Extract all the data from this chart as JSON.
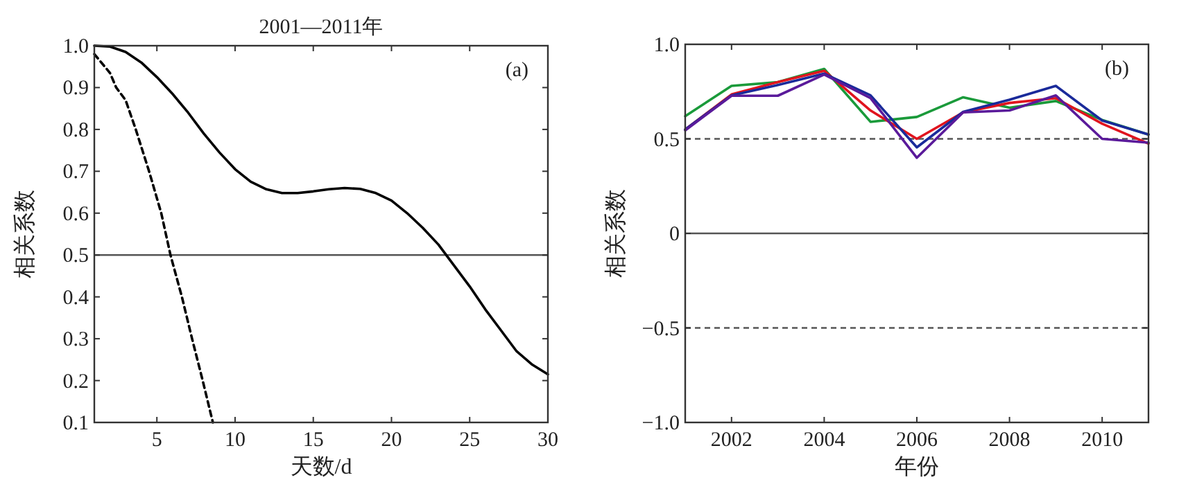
{
  "chart_data": [
    {
      "type": "line",
      "title": "2001—2011年",
      "xlabel": "天数/d",
      "ylabel": "相关系数",
      "annotations": [
        "(a)"
      ],
      "x": [
        1,
        2,
        3,
        4,
        5,
        6,
        7,
        8,
        9,
        10,
        11,
        12,
        13,
        14,
        15,
        16,
        17,
        18,
        19,
        20,
        21,
        22,
        23,
        24,
        25,
        26,
        27,
        28,
        29,
        30
      ],
      "xlim": [
        1,
        30
      ],
      "ylim": [
        0.1,
        1.0
      ],
      "xticks": [
        5,
        10,
        15,
        20,
        25,
        30
      ],
      "yticks": [
        {
          "value": 0.1,
          "label": "0.1"
        },
        {
          "value": 0.2,
          "label": "0.2"
        },
        {
          "value": 0.3,
          "label": "0.3"
        },
        {
          "value": 0.4,
          "label": "0.4"
        },
        {
          "value": 0.5,
          "label": "0.5"
        },
        {
          "value": 0.6,
          "label": "0.6"
        },
        {
          "value": 0.7,
          "label": "0.7"
        },
        {
          "value": 0.8,
          "label": "0.8"
        },
        {
          "value": 0.9,
          "label": "0.9"
        },
        {
          "value": 1.0,
          "label": "1.0"
        }
      ],
      "ref_lines": [
        {
          "axis": "y",
          "value": 0.5,
          "color": "#555555",
          "line_style": "solid"
        }
      ],
      "series": [
        {
          "color": "#000000",
          "line_style": "solid",
          "values": [
            1.0,
            0.998,
            0.985,
            0.96,
            0.925,
            0.885,
            0.84,
            0.79,
            0.745,
            0.705,
            0.675,
            0.657,
            0.648,
            0.648,
            0.652,
            0.657,
            0.66,
            0.658,
            0.648,
            0.63,
            0.6,
            0.565,
            0.525,
            0.475,
            0.425,
            0.37,
            0.32,
            0.27,
            0.238,
            0.215
          ]
        },
        {
          "color": "#000000",
          "line_style": "dashed",
          "x": [
            1,
            2,
            2.4,
            3,
            3.65,
            4.5,
            5.28,
            5.87,
            6.6,
            7.25,
            7.93,
            8.58
          ],
          "values": [
            0.98,
            0.935,
            0.9,
            0.87,
            0.8,
            0.7,
            0.6,
            0.5,
            0.4,
            0.3,
            0.2,
            0.1
          ]
        }
      ]
    },
    {
      "type": "line",
      "xlabel": "年份",
      "ylabel": "相关系数",
      "annotations": [
        "(b)"
      ],
      "x": [
        2001,
        2002,
        2003,
        2004,
        2005,
        2006,
        2007,
        2008,
        2009,
        2010,
        2011
      ],
      "xlim": [
        2001,
        2011
      ],
      "ylim": [
        -1.0,
        1.0
      ],
      "xticks": [
        2002,
        2004,
        2006,
        2008,
        2010
      ],
      "yticks": [
        {
          "value": -1.0,
          "label": "−1.0"
        },
        {
          "value": -0.5,
          "label": "−0.5"
        },
        0,
        {
          "value": 0.5,
          "label": "0.5"
        },
        {
          "value": 1.0,
          "label": "1.0"
        }
      ],
      "ref_lines": [
        {
          "axis": "y",
          "value": 0.5,
          "color": "#555555",
          "line_style": "dashed"
        },
        {
          "axis": "y",
          "value": 0,
          "color": "#555555",
          "line_style": "solid"
        },
        {
          "axis": "y",
          "value": -0.5,
          "color": "#555555",
          "line_style": "dashed"
        }
      ],
      "series": [
        {
          "color": "#1a9a3a",
          "line_style": "solid",
          "values": [
            0.62,
            0.78,
            0.8,
            0.87,
            0.59,
            0.616,
            0.72,
            0.665,
            0.7,
            0.6,
            0.523
          ]
        },
        {
          "color": "#e0141e",
          "line_style": "solid",
          "values": [
            0.55,
            0.735,
            0.8,
            0.86,
            0.65,
            0.5,
            0.64,
            0.69,
            0.715,
            0.58,
            0.475
          ]
        },
        {
          "color": "#1a2a9a",
          "line_style": "solid",
          "values": [
            0.55,
            0.73,
            0.785,
            0.845,
            0.73,
            0.455,
            0.643,
            0.707,
            0.78,
            0.597,
            0.523
          ]
        },
        {
          "color": "#5a1a9a",
          "line_style": "solid",
          "values": [
            0.545,
            0.728,
            0.728,
            0.84,
            0.716,
            0.4,
            0.64,
            0.65,
            0.73,
            0.5,
            0.48
          ]
        }
      ]
    }
  ]
}
